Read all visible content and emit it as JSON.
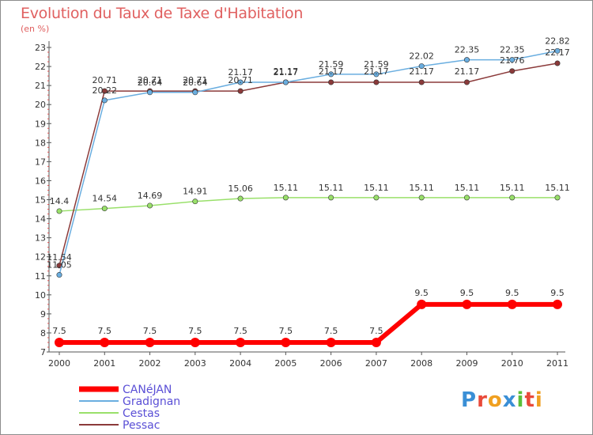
{
  "title": "Evolution du Taux de Taxe d'Habitation",
  "unit": "(en %)",
  "chart_data": {
    "type": "line",
    "title": "Evolution du Taux de Taxe d'Habitation",
    "ylabel": "(en %)",
    "xlabel": "",
    "x": [
      "2000",
      "2001",
      "2002",
      "2003",
      "2004",
      "2005",
      "2006",
      "2007",
      "2008",
      "2009",
      "2010",
      "2011"
    ],
    "ylim": [
      7,
      23
    ],
    "yticks": [
      7,
      8,
      9,
      10,
      11,
      12,
      13,
      14,
      15,
      16,
      17,
      18,
      19,
      20,
      21,
      22,
      23
    ],
    "grid": false,
    "legend_position": "bottom-left",
    "series": [
      {
        "name": "CANéJAN",
        "color": "#ff0000",
        "values": [
          7.5,
          7.5,
          7.5,
          7.5,
          7.5,
          7.5,
          7.5,
          7.5,
          9.5,
          9.5,
          9.5,
          9.5
        ],
        "labels": [
          "7.5",
          "7.5",
          "7.5",
          "7.5",
          "7.5",
          "7.5",
          "7.5",
          "7.5",
          "9.5",
          "9.5",
          "9.5",
          "9.5"
        ]
      },
      {
        "name": "Gradignan",
        "color": "#6aaee0",
        "values": [
          11.05,
          20.22,
          20.64,
          20.64,
          21.17,
          21.17,
          21.59,
          21.59,
          22.02,
          22.35,
          22.35,
          22.82
        ],
        "labels": [
          "11.05",
          "20.22",
          "20.64",
          "20.64",
          "21.17",
          "21.17",
          "21.59",
          "21.59",
          "22.02",
          "22.35",
          "22.35",
          "22.82"
        ]
      },
      {
        "name": "Cestas",
        "color": "#99e06a",
        "values": [
          14.4,
          14.54,
          14.69,
          14.91,
          15.06,
          15.11,
          15.11,
          15.11,
          15.11,
          15.11,
          15.11,
          15.11
        ],
        "labels": [
          "14.4",
          "14.54",
          "14.69",
          "14.91",
          "15.06",
          "15.11",
          "15.11",
          "15.11",
          "15.11",
          "15.11",
          "15.11",
          "15.11"
        ]
      },
      {
        "name": "Pessac",
        "color": "#8b3a3a",
        "values": [
          11.54,
          20.71,
          20.71,
          20.71,
          20.71,
          21.17,
          21.17,
          21.17,
          21.17,
          21.17,
          21.76,
          22.17
        ],
        "labels": [
          "11.54",
          "20.71",
          "20.71",
          "20.71",
          "20.71",
          "21.17",
          "21.17",
          "21.17",
          "21.17",
          "21.17",
          "21.76",
          "22.17"
        ]
      }
    ]
  },
  "logo": {
    "text": "Proxiti",
    "letters": [
      {
        "ch": "P",
        "color": "#3a8fd6"
      },
      {
        "ch": "r",
        "color": "#e94a3a"
      },
      {
        "ch": "o",
        "color": "#f0a020"
      },
      {
        "ch": "x",
        "color": "#3a8fd6"
      },
      {
        "ch": "i",
        "color": "#5bbf3a"
      },
      {
        "ch": "t",
        "color": "#e94a3a"
      },
      {
        "ch": "i",
        "color": "#f0a020"
      }
    ]
  }
}
